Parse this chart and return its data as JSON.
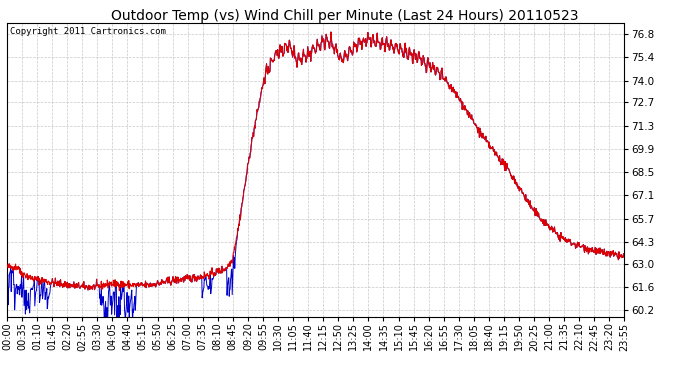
{
  "title": "Outdoor Temp (vs) Wind Chill per Minute (Last 24 Hours) 20110523",
  "copyright": "Copyright 2011 Cartronics.com",
  "yticks": [
    60.2,
    61.6,
    63.0,
    64.3,
    65.7,
    67.1,
    68.5,
    69.9,
    71.3,
    72.7,
    74.0,
    75.4,
    76.8
  ],
  "ymin": 59.8,
  "ymax": 77.5,
  "bg_color": "#ffffff",
  "plot_bg_color": "#ffffff",
  "grid_color": "#bbbbbb",
  "line_color_red": "#dd0000",
  "line_color_blue": "#0000cc",
  "title_fontsize": 10,
  "copyright_fontsize": 6.5,
  "tick_fontsize": 7.5,
  "xtick_labels": [
    "00:00",
    "00:35",
    "01:10",
    "01:45",
    "02:20",
    "02:55",
    "03:30",
    "04:05",
    "04:40",
    "05:15",
    "05:50",
    "06:25",
    "07:00",
    "07:35",
    "08:10",
    "08:45",
    "09:20",
    "09:55",
    "10:30",
    "11:05",
    "11:40",
    "12:15",
    "12:50",
    "13:25",
    "14:00",
    "14:35",
    "15:10",
    "15:45",
    "16:20",
    "16:55",
    "17:30",
    "18:05",
    "18:40",
    "19:15",
    "19:50",
    "20:25",
    "21:00",
    "21:35",
    "22:10",
    "22:45",
    "23:20",
    "23:55"
  ]
}
